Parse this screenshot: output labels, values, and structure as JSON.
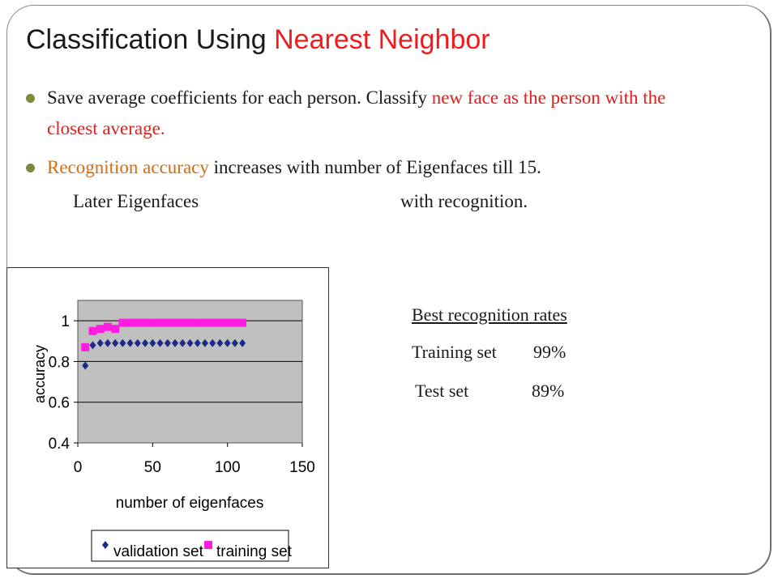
{
  "slide": {
    "title_plain": "Classification Using ",
    "title_highlight": "Nearest Neighbor",
    "bullet1_part1": "Save average coefficients for each person. Classify ",
    "bullet1_red": "new face as the person with the closest average.",
    "bullet2_orange": "Recognition accuracy",
    "bullet2_rest": " increases with number of Eigenfaces till 15.",
    "later_part1": "Later Eigenfaces",
    "later_part2": "with recognition.",
    "best_header": "Best recognition rates",
    "training_label": "Training set",
    "training_value": "99%",
    "test_label": "Test set",
    "test_value": "89%",
    "colors": {
      "title_highlight": "#ee1c1c",
      "red_text": "#e0201c",
      "orange_text": "#d36d12",
      "bullet": "#7c8a3f"
    }
  },
  "chart_data": {
    "type": "scatter",
    "xlabel": "number of eigenfaces",
    "ylabel": "accuracy",
    "xlim": [
      0,
      150
    ],
    "ylim": [
      0.4,
      1.1
    ],
    "xticks": [
      "0",
      "50",
      "100",
      "150"
    ],
    "yticks": [
      "0.4",
      "0.6",
      "0.8",
      "1"
    ],
    "grid": "horizontal",
    "legend": "bottom",
    "plot_background": "#c0c0c0",
    "series": [
      {
        "name": "validation set",
        "marker": "diamond",
        "color": "#1c2a8a",
        "x": [
          5,
          10,
          15,
          20,
          25,
          30,
          35,
          40,
          45,
          50,
          55,
          60,
          65,
          70,
          75,
          80,
          85,
          90,
          95,
          100,
          105,
          110
        ],
        "y": [
          0.78,
          0.88,
          0.89,
          0.89,
          0.89,
          0.89,
          0.89,
          0.89,
          0.89,
          0.89,
          0.89,
          0.89,
          0.89,
          0.89,
          0.89,
          0.89,
          0.89,
          0.89,
          0.89,
          0.89,
          0.89,
          0.89
        ]
      },
      {
        "name": "training set",
        "marker": "square",
        "color": "#ff1ee0",
        "x": [
          5,
          10,
          15,
          20,
          25,
          30,
          35,
          40,
          45,
          50,
          55,
          60,
          65,
          70,
          75,
          80,
          85,
          90,
          95,
          100,
          105,
          110
        ],
        "y": [
          0.87,
          0.95,
          0.96,
          0.97,
          0.96,
          0.99,
          0.99,
          0.99,
          0.99,
          0.99,
          0.99,
          0.99,
          0.99,
          0.99,
          0.99,
          0.99,
          0.99,
          0.99,
          0.99,
          0.99,
          0.99,
          0.99
        ]
      }
    ]
  }
}
